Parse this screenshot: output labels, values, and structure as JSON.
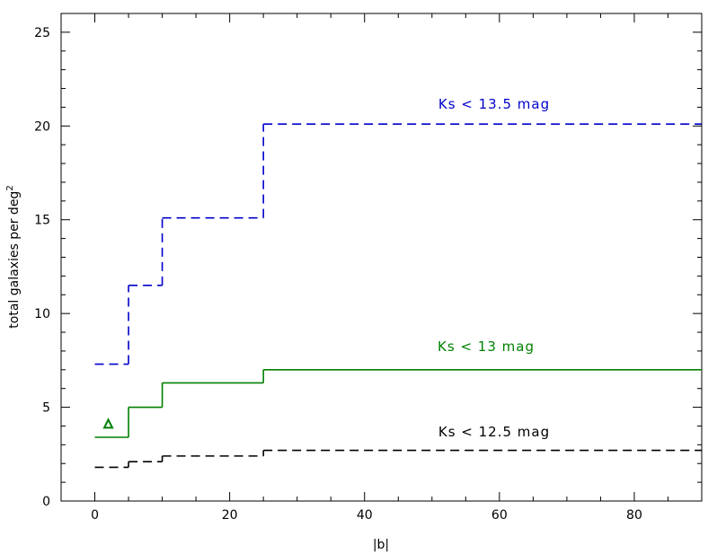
{
  "chart_data": {
    "type": "line",
    "xlabel": "|b|",
    "ylabel": "total galaxies per deg",
    "ylabel_sup": "2",
    "xlim": [
      -5,
      90
    ],
    "ylim": [
      0,
      26
    ],
    "x_ticks": [
      0,
      20,
      40,
      60,
      80
    ],
    "y_ticks": [
      0,
      5,
      10,
      15,
      20,
      25
    ],
    "grid": false,
    "series": [
      {
        "name": "Ks < 13.5 mag",
        "color": "#0000cc",
        "style": "dashed",
        "steps": [
          {
            "x0": 0,
            "x1": 5,
            "y": 7.3
          },
          {
            "x0": 5,
            "x1": 10,
            "y": 11.5
          },
          {
            "x0": 10,
            "x1": 25,
            "y": 15.1
          },
          {
            "x0": 25,
            "x1": 90,
            "y": 20.1
          }
        ]
      },
      {
        "name": "Ks < 13 mag",
        "color": "#008000",
        "style": "solid",
        "steps": [
          {
            "x0": 0,
            "x1": 5,
            "y": 3.4
          },
          {
            "x0": 5,
            "x1": 10,
            "y": 5.0
          },
          {
            "x0": 10,
            "x1": 25,
            "y": 6.3
          },
          {
            "x0": 25,
            "x1": 90,
            "y": 7.0
          }
        ]
      },
      {
        "name": "Ks < 12.5 mag",
        "color": "#000000",
        "style": "dashed",
        "steps": [
          {
            "x0": 0,
            "x1": 5,
            "y": 1.8
          },
          {
            "x0": 5,
            "x1": 10,
            "y": 2.1
          },
          {
            "x0": 10,
            "x1": 25,
            "y": 2.4
          },
          {
            "x0": 25,
            "x1": 90,
            "y": 2.7
          }
        ]
      }
    ],
    "markers": [
      {
        "shape": "triangle",
        "x": 2,
        "y": 4.1,
        "color": "#008000"
      }
    ]
  }
}
